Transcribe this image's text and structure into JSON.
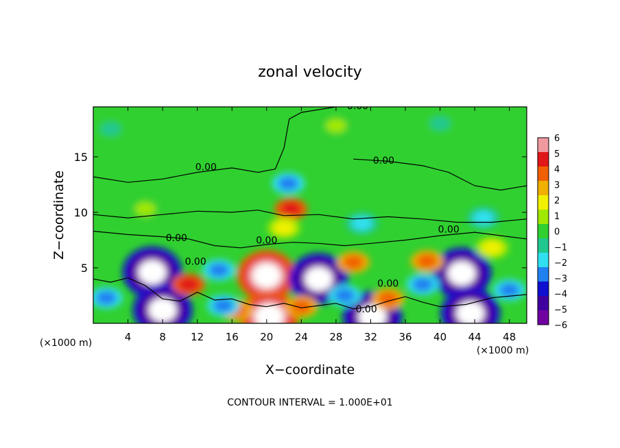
{
  "chart_data": {
    "type": "heatmap",
    "title": "zonal velocity",
    "xlabel": "X−coordinate",
    "ylabel": "Z−coordinate",
    "x_unit_left": "(×1000 m)",
    "x_unit_right": "(×1000 m)",
    "xlim": [
      0,
      50
    ],
    "ylim": [
      0,
      19.5
    ],
    "x_ticks": [
      4,
      8,
      12,
      16,
      20,
      24,
      28,
      32,
      36,
      40,
      44,
      48
    ],
    "y_ticks": [
      5,
      10,
      15
    ],
    "footer": "CONTOUR INTERVAL = 1.000E+01",
    "colorbar": {
      "ticks": [
        "6",
        "5",
        "4",
        "3",
        "2",
        "1",
        "0",
        "−1",
        "−2",
        "−3",
        "−4",
        "−5",
        "−6"
      ],
      "levels": [
        6,
        5,
        4,
        3,
        2,
        1,
        0,
        -1,
        -2,
        -3,
        -4,
        -5,
        -6
      ],
      "colors": [
        "#f09aa0",
        "#e01818",
        "#f06000",
        "#f0b000",
        "#f0f000",
        "#a0e800",
        "#30d030",
        "#20c890",
        "#30e0f0",
        "#2080f0",
        "#1010d0",
        "#4000a0",
        "#7000a0"
      ]
    },
    "background_value": 0,
    "contour_labels": [
      {
        "text": "0.00",
        "x": 30.5,
        "y": 19.6
      },
      {
        "text": "0.00",
        "x": 13.0,
        "y": 14.1
      },
      {
        "text": "0.00",
        "x": 33.5,
        "y": 14.7
      },
      {
        "text": "0.00",
        "x": 41.0,
        "y": 8.5
      },
      {
        "text": "0.00",
        "x": 9.6,
        "y": 7.7
      },
      {
        "text": "0.00",
        "x": 11.8,
        "y": 5.6
      },
      {
        "text": "0.00",
        "x": 20.0,
        "y": 7.5
      },
      {
        "text": "0.00",
        "x": 34.0,
        "y": 3.6
      },
      {
        "text": "0.00",
        "x": 31.5,
        "y": 1.3
      }
    ],
    "features": [
      {
        "x": 6.8,
        "y": 4.6,
        "value": -7
      },
      {
        "x": 8.0,
        "y": 1.2,
        "value": -7
      },
      {
        "x": 20.0,
        "y": 4.3,
        "value": 7
      },
      {
        "x": 20.3,
        "y": 0.6,
        "value": 7
      },
      {
        "x": 26.0,
        "y": 4.0,
        "value": -6
      },
      {
        "x": 32.2,
        "y": 0.6,
        "value": -6
      },
      {
        "x": 42.5,
        "y": 4.5,
        "value": -7
      },
      {
        "x": 43.5,
        "y": 0.9,
        "value": -7
      },
      {
        "x": 11.0,
        "y": 3.5,
        "value": 5
      },
      {
        "x": 16.5,
        "y": 1.2,
        "value": 4
      },
      {
        "x": 24.0,
        "y": 1.5,
        "value": 4
      },
      {
        "x": 30.0,
        "y": 5.5,
        "value": 4
      },
      {
        "x": 34.0,
        "y": 2.2,
        "value": 4
      },
      {
        "x": 38.5,
        "y": 5.6,
        "value": 4
      },
      {
        "x": 22.8,
        "y": 10.3,
        "value": 5
      },
      {
        "x": 22.5,
        "y": 12.6,
        "value": -3
      },
      {
        "x": 14.5,
        "y": 4.8,
        "value": -3
      },
      {
        "x": 15.0,
        "y": 1.6,
        "value": -3
      },
      {
        "x": 29.0,
        "y": 2.5,
        "value": -3
      },
      {
        "x": 31.0,
        "y": 9.0,
        "value": -2
      },
      {
        "x": 38.0,
        "y": 3.5,
        "value": -3
      },
      {
        "x": 48.0,
        "y": 3.0,
        "value": -3
      },
      {
        "x": 1.5,
        "y": 2.3,
        "value": -3
      },
      {
        "x": 45.0,
        "y": 9.5,
        "value": -2
      },
      {
        "x": 46.0,
        "y": 6.8,
        "value": 2
      },
      {
        "x": 22.0,
        "y": 8.6,
        "value": 2
      },
      {
        "x": 6.0,
        "y": 10.3,
        "value": 1
      },
      {
        "x": 28.0,
        "y": 17.8,
        "value": 1
      },
      {
        "x": 2.0,
        "y": 17.5,
        "value": -1
      },
      {
        "x": 40.0,
        "y": 18.0,
        "value": -1
      }
    ]
  }
}
